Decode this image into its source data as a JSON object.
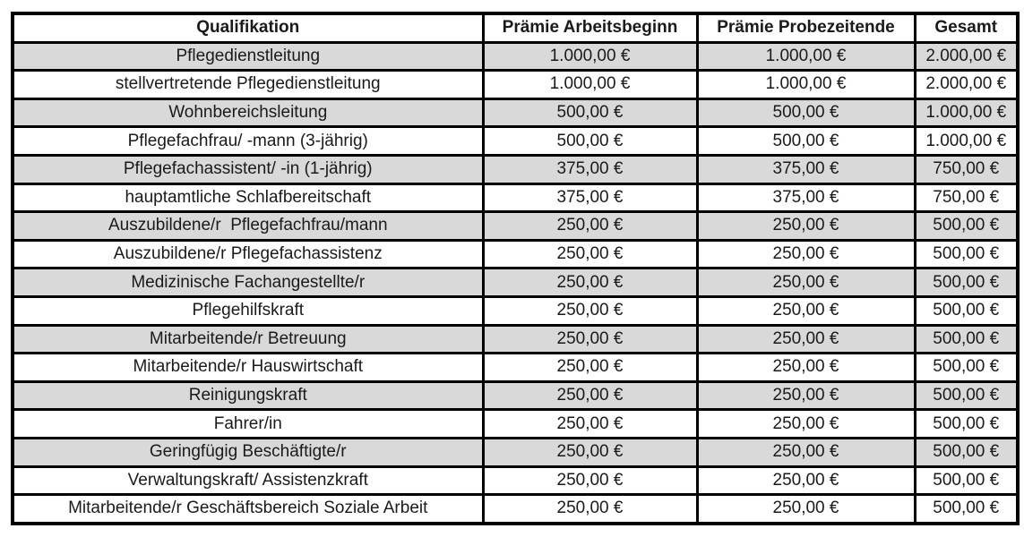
{
  "table": {
    "columns": [
      "Qualifikation",
      "Prämie Arbeitsbeginn",
      "Prämie Probezeitende",
      "Gesamt"
    ],
    "rows": [
      {
        "shaded": true,
        "cells": [
          "Pflegedienstleitung",
          "1.000,00 €",
          "1.000,00 €",
          "2.000,00 €"
        ]
      },
      {
        "shaded": false,
        "cells": [
          "stellvertretende Pflegedienstleitung",
          "1.000,00 €",
          "1.000,00 €",
          "2.000,00 €"
        ]
      },
      {
        "shaded": true,
        "cells": [
          "Wohnbereichsleitung",
          "500,00 €",
          "500,00 €",
          "1.000,00 €"
        ]
      },
      {
        "shaded": false,
        "cells": [
          "Pflegefachfrau/ -mann (3-jährig)",
          "500,00 €",
          "500,00 €",
          "1.000,00 €"
        ]
      },
      {
        "shaded": true,
        "cells": [
          "Pflegefachassistent/ -in (1-jährig)",
          "375,00 €",
          "375,00 €",
          "750,00 €"
        ]
      },
      {
        "shaded": false,
        "cells": [
          "hauptamtliche Schlafbereitschaft",
          "375,00 €",
          "375,00 €",
          "750,00 €"
        ]
      },
      {
        "shaded": true,
        "cells": [
          "Auszubildene/r  Pflegefachfrau/mann",
          "250,00 €",
          "250,00 €",
          "500,00 €"
        ]
      },
      {
        "shaded": false,
        "cells": [
          "Auszubildene/r Pflegefachassistenz",
          "250,00 €",
          "250,00 €",
          "500,00 €"
        ]
      },
      {
        "shaded": true,
        "cells": [
          "Medizinische Fachangestellte/r",
          "250,00 €",
          "250,00 €",
          "500,00 €"
        ]
      },
      {
        "shaded": false,
        "cells": [
          "Pflegehilfskraft",
          "250,00 €",
          "250,00 €",
          "500,00 €"
        ]
      },
      {
        "shaded": true,
        "cells": [
          "Mitarbeitende/r Betreuung",
          "250,00 €",
          "250,00 €",
          "500,00 €"
        ]
      },
      {
        "shaded": false,
        "cells": [
          "Mitarbeitende/r Hauswirtschaft",
          "250,00 €",
          "250,00 €",
          "500,00 €"
        ]
      },
      {
        "shaded": true,
        "cells": [
          "Reinigungskraft",
          "250,00 €",
          "250,00 €",
          "500,00 €"
        ]
      },
      {
        "shaded": false,
        "cells": [
          "Fahrer/in",
          "250,00 €",
          "250,00 €",
          "500,00 €"
        ]
      },
      {
        "shaded": true,
        "cells": [
          "Geringfügig Beschäftigte/r",
          "250,00 €",
          "250,00 €",
          "500,00 €"
        ]
      },
      {
        "shaded": false,
        "cells": [
          "Verwaltungskraft/ Assistenzkraft",
          "250,00 €",
          "250,00 €",
          "500,00 €"
        ]
      },
      {
        "shaded": false,
        "cells": [
          "Mitarbeitende/r Geschäftsbereich Soziale Arbeit",
          "250,00 €",
          "250,00 €",
          "500,00 €"
        ]
      }
    ]
  },
  "colors": {
    "row_shade": "#d9d9d9",
    "border": "#000000",
    "background": "#ffffff",
    "text": "#1a1a1a"
  }
}
